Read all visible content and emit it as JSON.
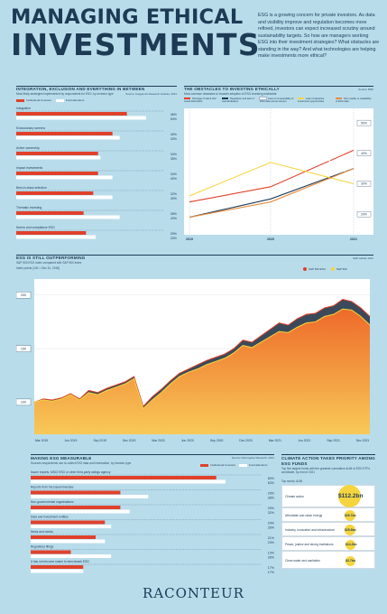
{
  "header": {
    "title_line1": "MANAGING ETHICAL",
    "title_line2": "INVESTMENTS",
    "intro": "ESG is a growing concern for private investors. As data and visibility improve and regulation becomes more refined, investors can expect increased scrutiny around sustainability targets. So how are managers working ESG into their investment strategies? What obstacles are standing in the way? And what technologies are helping make investments more ethical?"
  },
  "integration": {
    "title": "INTEGRATION, EXCLUSION AND EVERYTHING IN BETWEEN",
    "subtitle": "Most likely strategies implemented by respondents for ESG, by investor type",
    "source": "Source: Capgemini Research Institute, 2021",
    "legend": [
      "Institutional investors",
      "Fund allocators"
    ],
    "colors": {
      "a": "#e0412b",
      "b": "#ffffff"
    }
  },
  "obstacles": {
    "title": "THE OBSTACLES TO INVESTING ETHICALLY",
    "subtitle": "Most common obstacles to broader adoption of ESG investing worldwide",
    "source": "Source: BNP",
    "legend": [
      "Shortage of talent that would allow ESG",
      "Regulation and lack of standardisation",
      "Lack of comparability of ESG data across issuers",
      "Lack of attractive investment opportunities",
      "Poor quality or availability of ESG data"
    ]
  },
  "performance": {
    "title": "ESG IS STILL OUTPERFORMING",
    "subtitle": "S&P 500 ESG Index compared with S&P 500 index",
    "subtitle2": "Index points (100 = Dec 31, 2018)",
    "source": "S&P Global, 2021",
    "legend": [
      "S&P 500 ESG",
      "S&P 500"
    ]
  },
  "measurable": {
    "title": "MAKING ESG MEASURABLE",
    "subtitle": "Sources respondents use to collect ESG data and information, by investor type",
    "source": "Source: Morningstar Research, 2021",
    "legend": [
      "Institutional investors",
      "Fund allocators"
    ]
  },
  "climate": {
    "title": "CLIMATE ACTION TAKES PRIORITY AMONG ESG FUNDS",
    "subtitle": "Top five largest funds with the greatest cumulative AUM of ESG ETFs worldwide, by end of 2021",
    "unit": "Top sector, AUM",
    "items": [
      {
        "label": "Climate action",
        "value": "$112.2bn"
      },
      {
        "label": "Affordable and clean energy",
        "value": "$26.7bn"
      },
      {
        "label": "Industry, innovation and infrastructure",
        "value": "$25.8bn"
      },
      {
        "label": "Peace, justice and strong institutions",
        "value": "$14.2bn"
      },
      {
        "label": "Clean water and sanitation",
        "value": "$3.7bn"
      }
    ]
  },
  "logo": "RACONTEUR",
  "chart_data": [
    {
      "type": "bar",
      "id": "integration",
      "categories": [
        "Integration",
        "Exclusionary screens",
        "Active ownership",
        "Impact investments",
        "Best-in-class selection",
        "Thematic investing",
        "Norms and compliance ESG"
      ],
      "series": [
        {
          "name": "Institutional investors",
          "values": [
            46,
            40,
            34,
            34,
            32,
            28,
            29
          ]
        },
        {
          "name": "Fund allocators",
          "values": [
            54,
            43,
            35,
            40,
            40,
            43,
            33
          ]
        }
      ],
      "xlim": [
        0,
        60
      ]
    },
    {
      "type": "line",
      "id": "obstacles",
      "x": [
        "2019",
        "2020",
        "2021"
      ],
      "ylabel_ticks": [
        "50%",
        "40%",
        "30%",
        "20%"
      ],
      "series": [
        {
          "name": "Shortage of talent that would allow ESG",
          "values": [
            24,
            29,
            41
          ]
        },
        {
          "name": "Regulation and lack of standardisation",
          "values": [
            19,
            25,
            35
          ]
        },
        {
          "name": "Lack of comparability of ESG data across issuers",
          "values": [
            27,
            51,
            32
          ]
        },
        {
          "name": "Lack of attractive investment opportunities",
          "values": [
            26,
            37,
            30
          ]
        },
        {
          "name": "Poor quality or availability of ESG data",
          "values": [
            19,
            24,
            35
          ]
        }
      ],
      "ylim": [
        15,
        53
      ]
    },
    {
      "type": "area",
      "id": "performance",
      "yticks": [
        100,
        150,
        200
      ],
      "xticks": [
        "Mar 2019",
        "Jun 2019",
        "Sep 2019",
        "Dec 2019",
        "Mar 2020",
        "Jun 2020",
        "Sep 2020",
        "Dec 2020",
        "Mar 2021",
        "Jun 2021",
        "Sep 2021",
        "Dec 2021"
      ],
      "series": [
        {
          "name": "S&P 500 ESG",
          "values": [
            100,
            103,
            102,
            104,
            108,
            103,
            111,
            109,
            113,
            116,
            119,
            124,
            96,
            105,
            112,
            120,
            127,
            131,
            135,
            139,
            142,
            145,
            150,
            158,
            156,
            162,
            168,
            174,
            172,
            178,
            182,
            183,
            188,
            190,
            196,
            194,
            188,
            180
          ]
        },
        {
          "name": "S&P 500",
          "values": [
            100,
            102,
            101,
            103,
            107,
            102,
            109,
            107,
            111,
            114,
            117,
            122,
            94,
            102,
            109,
            117,
            124,
            128,
            131,
            135,
            138,
            141,
            146,
            153,
            151,
            156,
            161,
            166,
            165,
            170,
            174,
            175,
            180,
            182,
            187,
            186,
            180,
            172
          ]
        }
      ],
      "ylim": [
        70,
        215
      ]
    },
    {
      "type": "bar",
      "id": "measurable",
      "categories": [
        "Issuer reports, MSCI ESG or other third-party ratings agency",
        "Reports from the issuer/investee",
        "Non-governmental organisations",
        "Data and investment entities",
        "News and media",
        "Regulatory filings",
        "It has not become easier to benchmark ESG"
      ],
      "series": [
        {
          "name": "Institutional investors",
          "values": [
            60,
            29,
            29,
            24,
            21,
            13,
            17
          ]
        },
        {
          "name": "Fund allocators",
          "values": [
            63,
            38,
            32,
            26,
            24,
            26,
            17
          ]
        }
      ],
      "xlim": [
        0,
        70
      ]
    }
  ]
}
